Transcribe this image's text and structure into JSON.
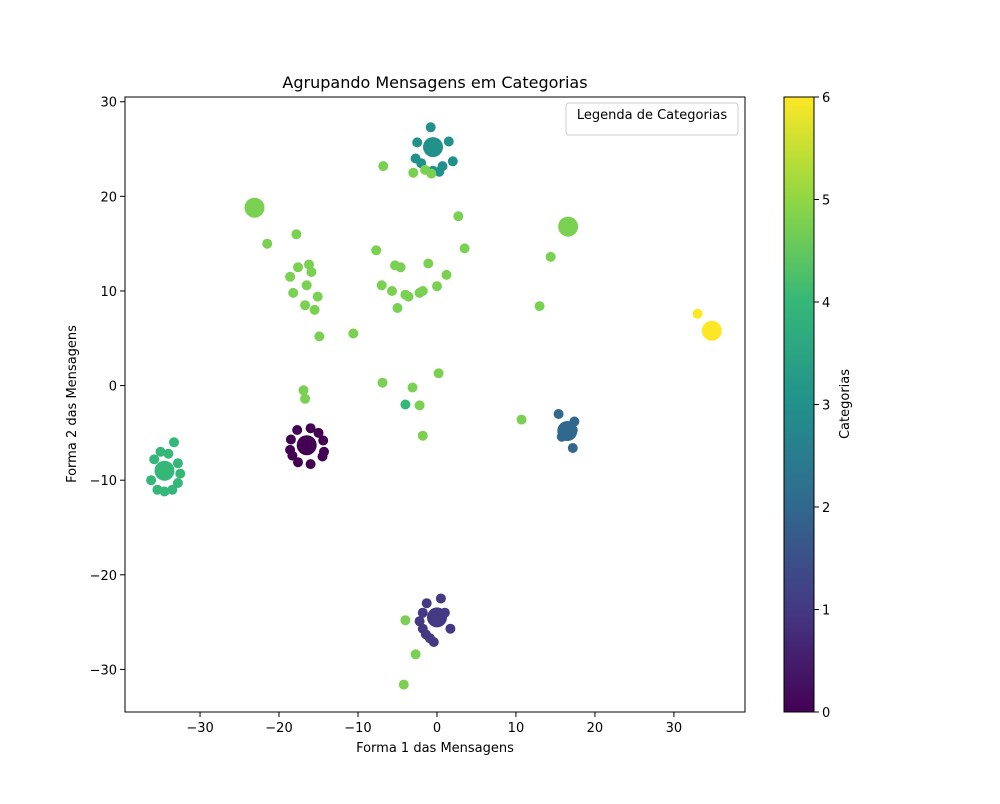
{
  "chart_data": {
    "type": "scatter",
    "title": "Agrupando Mensagens em Categorias",
    "xlabel": "Forma 1 das Mensagens",
    "ylabel": "Forma 2 das Mensagens",
    "xlim": [
      -39.5,
      39
    ],
    "ylim": [
      -34.5,
      30.5
    ],
    "xticks": [
      -30,
      -20,
      -10,
      0,
      10,
      20,
      30
    ],
    "yticks": [
      -30,
      -20,
      -10,
      0,
      10,
      20,
      30
    ],
    "grid": false,
    "legend": {
      "title": "Legenda de Categorias",
      "placement": "top-right",
      "entries": []
    },
    "colorbar": {
      "label": "Categorias",
      "range": [
        0,
        6
      ],
      "ticks": [
        0,
        1,
        2,
        3,
        4,
        5,
        6
      ],
      "colormap": "viridis",
      "stops": [
        "#440154",
        "#443983",
        "#31688e",
        "#21918c",
        "#35b779",
        "#90d743",
        "#fde725"
      ]
    },
    "category_colors": {
      "0": "#440154",
      "1": "#443983",
      "2": "#31688e",
      "3": "#21918c",
      "4": "#35b779",
      "5": "#7ad151",
      "6": "#fde725"
    },
    "points": [
      {
        "x": -16.5,
        "y": -6.3,
        "c": 0,
        "big": true
      },
      {
        "x": -16.0,
        "y": -4.5,
        "c": 0
      },
      {
        "x": -17.7,
        "y": -4.7,
        "c": 0
      },
      {
        "x": -18.5,
        "y": -5.7,
        "c": 0
      },
      {
        "x": -18.6,
        "y": -6.8,
        "c": 0
      },
      {
        "x": -18.3,
        "y": -7.4,
        "c": 0
      },
      {
        "x": -17.6,
        "y": -8.1,
        "c": 0
      },
      {
        "x": -16.0,
        "y": -8.3,
        "c": 0
      },
      {
        "x": -14.4,
        "y": -5.8,
        "c": 0
      },
      {
        "x": -14.3,
        "y": -7.0,
        "c": 0
      },
      {
        "x": -14.5,
        "y": -7.5,
        "c": 0
      },
      {
        "x": -15.0,
        "y": -5.0,
        "c": 0
      },
      {
        "x": 0.0,
        "y": -24.5,
        "c": 1,
        "big": true
      },
      {
        "x": 0.5,
        "y": -22.5,
        "c": 1
      },
      {
        "x": -1.3,
        "y": -23.0,
        "c": 1
      },
      {
        "x": -1.8,
        "y": -24.0,
        "c": 1
      },
      {
        "x": -2.2,
        "y": -24.9,
        "c": 1
      },
      {
        "x": -1.8,
        "y": -25.7,
        "c": 1
      },
      {
        "x": -1.4,
        "y": -26.3,
        "c": 1
      },
      {
        "x": -0.9,
        "y": -26.7,
        "c": 1
      },
      {
        "x": -0.4,
        "y": -27.1,
        "c": 1
      },
      {
        "x": 1.7,
        "y": -25.7,
        "c": 1
      },
      {
        "x": 1.0,
        "y": -24.0,
        "c": 1
      },
      {
        "x": 16.5,
        "y": -4.8,
        "c": 2,
        "big": true
      },
      {
        "x": 15.4,
        "y": -3.0,
        "c": 2
      },
      {
        "x": 17.4,
        "y": -3.8,
        "c": 2
      },
      {
        "x": 17.2,
        "y": -4.7,
        "c": 2
      },
      {
        "x": 15.8,
        "y": -5.4,
        "c": 2
      },
      {
        "x": 17.2,
        "y": -6.6,
        "c": 2
      },
      {
        "x": 16.3,
        "y": -5.2,
        "c": 2
      },
      {
        "x": -0.5,
        "y": 25.2,
        "c": 3,
        "big": true
      },
      {
        "x": -0.8,
        "y": 27.3,
        "c": 3
      },
      {
        "x": -2.5,
        "y": 25.7,
        "c": 3
      },
      {
        "x": 1.5,
        "y": 25.8,
        "c": 3
      },
      {
        "x": -2.7,
        "y": 24.0,
        "c": 3
      },
      {
        "x": -2.0,
        "y": 23.5,
        "c": 3
      },
      {
        "x": 2.0,
        "y": 23.7,
        "c": 3
      },
      {
        "x": 0.7,
        "y": 23.2,
        "c": 3
      },
      {
        "x": 0.3,
        "y": 22.6,
        "c": 3
      },
      {
        "x": -0.5,
        "y": 22.7,
        "c": 3
      },
      {
        "x": -34.5,
        "y": -9.0,
        "c": 4,
        "big": true
      },
      {
        "x": -33.3,
        "y": -6.0,
        "c": 4
      },
      {
        "x": -34.0,
        "y": -7.2,
        "c": 4
      },
      {
        "x": -35.0,
        "y": -7.0,
        "c": 4
      },
      {
        "x": -35.8,
        "y": -7.8,
        "c": 4
      },
      {
        "x": -32.8,
        "y": -8.2,
        "c": 4
      },
      {
        "x": -32.5,
        "y": -9.3,
        "c": 4
      },
      {
        "x": -32.8,
        "y": -10.3,
        "c": 4
      },
      {
        "x": -33.5,
        "y": -11.0,
        "c": 4
      },
      {
        "x": -34.5,
        "y": -11.2,
        "c": 4
      },
      {
        "x": -35.4,
        "y": -11.0,
        "c": 4
      },
      {
        "x": -36.2,
        "y": -10.0,
        "c": 4
      },
      {
        "x": -4.0,
        "y": -2.0,
        "c": 4
      },
      {
        "x": -23.1,
        "y": 18.8,
        "c": 5,
        "big": true
      },
      {
        "x": -21.5,
        "y": 15.0,
        "c": 5
      },
      {
        "x": -17.8,
        "y": 16.0,
        "c": 5
      },
      {
        "x": -17.6,
        "y": 12.5,
        "c": 5
      },
      {
        "x": -16.2,
        "y": 12.8,
        "c": 5
      },
      {
        "x": -15.9,
        "y": 12.0,
        "c": 5
      },
      {
        "x": -18.6,
        "y": 11.5,
        "c": 5
      },
      {
        "x": -16.5,
        "y": 10.6,
        "c": 5
      },
      {
        "x": -18.2,
        "y": 9.8,
        "c": 5
      },
      {
        "x": -15.1,
        "y": 9.4,
        "c": 5
      },
      {
        "x": -16.7,
        "y": 8.5,
        "c": 5
      },
      {
        "x": -15.5,
        "y": 8.0,
        "c": 5
      },
      {
        "x": -14.9,
        "y": 5.2,
        "c": 5
      },
      {
        "x": -10.6,
        "y": 5.5,
        "c": 5
      },
      {
        "x": -7.7,
        "y": 14.3,
        "c": 5
      },
      {
        "x": -5.3,
        "y": 12.7,
        "c": 5
      },
      {
        "x": -4.6,
        "y": 12.5,
        "c": 5
      },
      {
        "x": -1.1,
        "y": 12.9,
        "c": 5
      },
      {
        "x": 1.2,
        "y": 11.7,
        "c": 5
      },
      {
        "x": -7.0,
        "y": 10.6,
        "c": 5
      },
      {
        "x": -5.7,
        "y": 10.0,
        "c": 5
      },
      {
        "x": -4.0,
        "y": 9.6,
        "c": 5
      },
      {
        "x": -3.6,
        "y": 9.4,
        "c": 5
      },
      {
        "x": -2.2,
        "y": 9.8,
        "c": 5
      },
      {
        "x": -1.8,
        "y": 10.0,
        "c": 5
      },
      {
        "x": 0.0,
        "y": 10.5,
        "c": 5
      },
      {
        "x": -5.0,
        "y": 8.2,
        "c": 5
      },
      {
        "x": 2.7,
        "y": 17.9,
        "c": 5
      },
      {
        "x": 3.5,
        "y": 14.5,
        "c": 5
      },
      {
        "x": -6.8,
        "y": 23.2,
        "c": 5
      },
      {
        "x": -3.0,
        "y": 22.5,
        "c": 5
      },
      {
        "x": -1.5,
        "y": 22.8,
        "c": 5
      },
      {
        "x": -0.7,
        "y": 22.4,
        "c": 5
      },
      {
        "x": 16.6,
        "y": 16.8,
        "c": 5,
        "big": true
      },
      {
        "x": 14.4,
        "y": 13.6,
        "c": 5
      },
      {
        "x": 13.0,
        "y": 8.4,
        "c": 5
      },
      {
        "x": -16.9,
        "y": -0.5,
        "c": 5
      },
      {
        "x": -16.7,
        "y": -1.4,
        "c": 5
      },
      {
        "x": -6.9,
        "y": 0.3,
        "c": 5
      },
      {
        "x": -3.1,
        "y": -0.2,
        "c": 5
      },
      {
        "x": 0.2,
        "y": 1.3,
        "c": 5
      },
      {
        "x": -2.2,
        "y": -2.1,
        "c": 5
      },
      {
        "x": -1.8,
        "y": -5.3,
        "c": 5
      },
      {
        "x": 10.7,
        "y": -3.6,
        "c": 5
      },
      {
        "x": -4.0,
        "y": -24.8,
        "c": 5
      },
      {
        "x": -2.7,
        "y": -28.4,
        "c": 5
      },
      {
        "x": -4.2,
        "y": -31.6,
        "c": 5
      },
      {
        "x": 34.8,
        "y": 5.8,
        "c": 6,
        "big": true
      },
      {
        "x": 33.0,
        "y": 7.6,
        "c": 6
      }
    ]
  }
}
